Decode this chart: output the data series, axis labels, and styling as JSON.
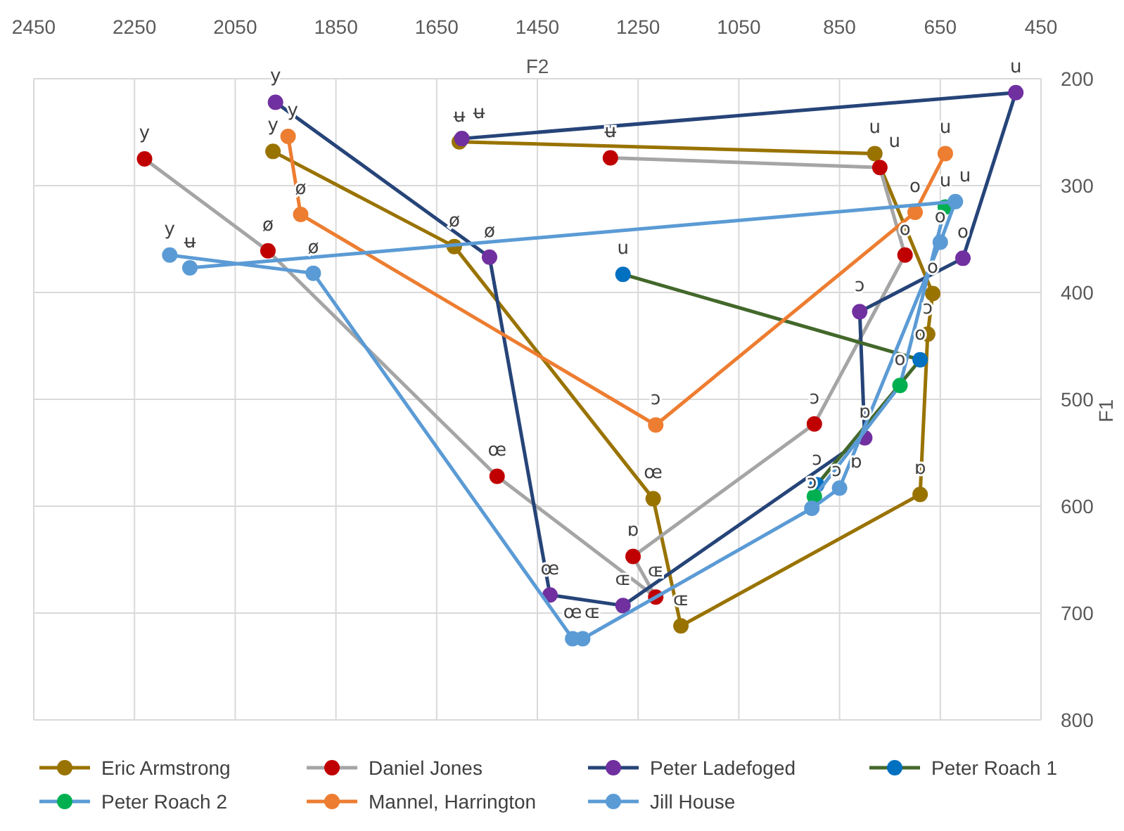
{
  "chart_data": {
    "type": "line",
    "xlabel": "F2",
    "ylabel": "F1",
    "xlim": [
      2450,
      450
    ],
    "xticks": [
      2450,
      2250,
      2050,
      1850,
      1650,
      1450,
      1250,
      1050,
      850,
      650,
      450
    ],
    "ylim": [
      800,
      200
    ],
    "yticks": [
      200,
      300,
      400,
      500,
      600,
      700,
      800
    ],
    "grid": true,
    "legend": "bottom",
    "marker": "circle",
    "line_style": "solid",
    "series": [
      {
        "name": "Eric Armstrong",
        "color": "#997300",
        "colors": [
          "#997300",
          "#997300",
          "#997300",
          "#997300",
          "#997300",
          "#997300",
          "#997300",
          "#997300",
          "#997300"
        ],
        "x": [
          1975,
          1615,
          1220,
          1165,
          690,
          675,
          665,
          780,
          1605
        ],
        "values": [
          268,
          357,
          593,
          712,
          589,
          439,
          401,
          270,
          259
        ],
        "value_labels": [
          "y",
          "ø",
          "œ",
          "ɶ",
          "ɒ",
          "ɔ",
          "o",
          "u",
          "ʉ"
        ]
      },
      {
        "name": "Daniel Jones",
        "color": "#a5a5a5",
        "colors": [
          "#c00000",
          "#c00000",
          "#c00000",
          "#c00000",
          "#c00000",
          "#c00000",
          "#c00000",
          "#c00000",
          "#c00000"
        ],
        "x": [
          2230,
          1985,
          1530,
          1215,
          1260,
          900,
          720,
          770,
          1305
        ],
        "values": [
          275,
          361,
          572,
          685,
          647,
          523,
          365,
          283,
          274
        ],
        "value_labels": [
          "y",
          "ø",
          "œ",
          "ɶ",
          "ɒ",
          "ɔ",
          "o",
          "u",
          "ʉ"
        ]
      },
      {
        "name": "Peter Ladefoged",
        "color": "#264478",
        "colors": [
          "#7030a0",
          "#7030a0",
          "#7030a0",
          "#7030a0",
          "#7030a0",
          "#7030a0",
          "#7030a0",
          "#7030a0",
          "#7030a0"
        ],
        "x": [
          1970,
          1545,
          1425,
          1280,
          800,
          810,
          605,
          500,
          1600
        ],
        "values": [
          222,
          367,
          683,
          693,
          536,
          418,
          368,
          213,
          256
        ],
        "value_labels": [
          "y",
          "ø",
          "œ",
          "ɶ",
          "ɒ",
          "ɔ",
          "o",
          "u",
          "ʉ"
        ]
      },
      {
        "name": "Peter Roach 1",
        "color": "#43682b",
        "colors": [
          "#0070c0",
          "#0070c0",
          "#0070c0"
        ],
        "x": [
          1280,
          690,
          895
        ],
        "values": [
          383,
          463,
          580
        ],
        "value_labels": [
          "u",
          "o",
          "ɔ"
        ]
      },
      {
        "name": "Peter Roach 2",
        "color": "#5b9bd5",
        "colors": [
          "#00b050",
          "#00b050",
          "#00b050"
        ],
        "x": [
          640,
          730,
          900
        ],
        "values": [
          320,
          487,
          591
        ],
        "value_labels": [
          "u",
          "o",
          "ɔ"
        ]
      },
      {
        "name": "Mannel, Harrington",
        "color": "#ed7d31",
        "colors": [
          "#ed7d31",
          "#ed7d31",
          "#ed7d31",
          "#ed7d31",
          "#ed7d31"
        ],
        "x": [
          1945,
          1920,
          1215,
          700,
          640
        ],
        "values": [
          254,
          327,
          524,
          325,
          270
        ],
        "value_labels": [
          "y",
          "ø",
          "ɔ",
          "o",
          "u"
        ]
      },
      {
        "name": "Jill House",
        "color": "#5b9bd5",
        "colors": [
          "#5b9bd5",
          "#5b9bd5",
          "#5b9bd5",
          "#5b9bd5",
          "#5b9bd5",
          "#5b9bd5",
          "#5b9bd5",
          "#5b9bd5",
          "#5b9bd5"
        ],
        "x": [
          2180,
          1895,
          1380,
          1360,
          905,
          850,
          650,
          620,
          2140
        ],
        "values": [
          365,
          382,
          724,
          724,
          602,
          583,
          353,
          315,
          377
        ],
        "value_labels": [
          "y",
          "ø",
          "œ",
          "ɶ",
          "ɔ",
          "ɒ",
          "o",
          "u",
          "ʉ"
        ]
      }
    ]
  }
}
